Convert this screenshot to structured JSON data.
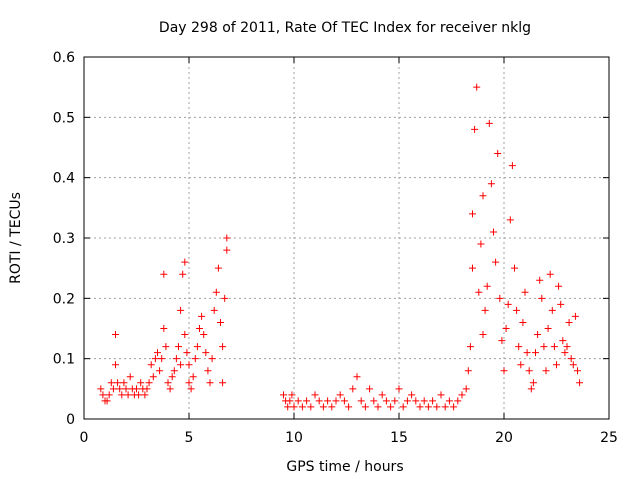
{
  "chart_data": {
    "type": "scatter",
    "title": "Day 298 of 2011, Rate Of TEC Index for receiver nklg",
    "xlabel": "GPS time / hours",
    "ylabel": "ROTI / TECUs",
    "xlim": [
      0,
      25
    ],
    "ylim": [
      0,
      0.6
    ],
    "xticks": [
      0,
      5,
      10,
      15,
      20,
      25
    ],
    "yticks": [
      0,
      0.1,
      0.2,
      0.3,
      0.4,
      0.5,
      0.6
    ],
    "xtick_labels": [
      "0",
      "5",
      "10",
      "15",
      "20",
      "25"
    ],
    "ytick_labels": [
      "0",
      "0.1",
      "0.2",
      "0.3",
      "0.4",
      "0.5",
      "0.6"
    ],
    "grid": true,
    "marker": "+",
    "color": "#ff0000",
    "series": [
      {
        "x": [
          0.8,
          0.9,
          1.0,
          1.1,
          1.2,
          1.3,
          1.4,
          1.5,
          1.5,
          1.6,
          1.7,
          1.8,
          1.9,
          2.0,
          2.1,
          2.2,
          2.3,
          2.4,
          2.5,
          2.6,
          2.7,
          2.8,
          2.9,
          3.0,
          3.1,
          3.2,
          3.3,
          3.4,
          3.5,
          3.6,
          3.7,
          3.8,
          3.8,
          3.9,
          4.0,
          4.1,
          4.2,
          4.3,
          4.4,
          4.5,
          4.6,
          4.6,
          4.7,
          4.8,
          4.8,
          4.9,
          5.0,
          5.0,
          5.1,
          5.2,
          5.3,
          5.4,
          5.5,
          5.6,
          5.7,
          5.8,
          5.9,
          6.0,
          6.1,
          6.2,
          6.3,
          6.4,
          6.5,
          6.6,
          6.6,
          6.7,
          6.8,
          6.8,
          9.5,
          9.6,
          9.7,
          9.8,
          9.9,
          10.0,
          10.2,
          10.4,
          10.6,
          10.8,
          11.0,
          11.2,
          11.4,
          11.6,
          11.8,
          12.0,
          12.2,
          12.4,
          12.6,
          12.8,
          13.0,
          13.2,
          13.4,
          13.6,
          13.8,
          14.0,
          14.2,
          14.4,
          14.6,
          14.8,
          15.0,
          15.2,
          15.4,
          15.6,
          15.8,
          16.0,
          16.2,
          16.4,
          16.6,
          16.8,
          17.0,
          17.2,
          17.4,
          17.6,
          17.8,
          18.0,
          18.2,
          18.3,
          18.4,
          18.5,
          18.5,
          18.6,
          18.7,
          18.8,
          18.9,
          19.0,
          19.0,
          19.1,
          19.2,
          19.3,
          19.4,
          19.5,
          19.6,
          19.7,
          19.8,
          19.9,
          20.0,
          20.1,
          20.2,
          20.3,
          20.4,
          20.5,
          20.6,
          20.7,
          20.8,
          20.9,
          21.0,
          21.1,
          21.2,
          21.3,
          21.4,
          21.5,
          21.6,
          21.7,
          21.8,
          21.9,
          22.0,
          22.1,
          22.2,
          22.3,
          22.4,
          22.5,
          22.6,
          22.7,
          22.8,
          22.9,
          23.0,
          23.1,
          23.2,
          23.3,
          23.4,
          23.5,
          23.6
        ],
        "y": [
          0.05,
          0.04,
          0.03,
          0.03,
          0.04,
          0.06,
          0.05,
          0.14,
          0.09,
          0.06,
          0.05,
          0.04,
          0.06,
          0.05,
          0.04,
          0.07,
          0.05,
          0.04,
          0.05,
          0.04,
          0.06,
          0.05,
          0.04,
          0.05,
          0.06,
          0.09,
          0.07,
          0.1,
          0.11,
          0.08,
          0.1,
          0.24,
          0.15,
          0.12,
          0.06,
          0.05,
          0.07,
          0.08,
          0.1,
          0.12,
          0.18,
          0.09,
          0.24,
          0.26,
          0.14,
          0.11,
          0.09,
          0.06,
          0.05,
          0.07,
          0.1,
          0.12,
          0.15,
          0.17,
          0.14,
          0.11,
          0.08,
          0.06,
          0.1,
          0.18,
          0.21,
          0.25,
          0.16,
          0.12,
          0.06,
          0.2,
          0.28,
          0.3,
          0.04,
          0.03,
          0.02,
          0.03,
          0.04,
          0.02,
          0.03,
          0.02,
          0.03,
          0.02,
          0.04,
          0.03,
          0.02,
          0.03,
          0.02,
          0.03,
          0.04,
          0.03,
          0.02,
          0.05,
          0.07,
          0.03,
          0.02,
          0.05,
          0.03,
          0.02,
          0.04,
          0.03,
          0.02,
          0.03,
          0.05,
          0.02,
          0.03,
          0.04,
          0.03,
          0.02,
          0.03,
          0.02,
          0.03,
          0.02,
          0.04,
          0.02,
          0.03,
          0.02,
          0.03,
          0.04,
          0.05,
          0.08,
          0.12,
          0.25,
          0.34,
          0.48,
          0.55,
          0.21,
          0.29,
          0.14,
          0.37,
          0.18,
          0.22,
          0.49,
          0.39,
          0.31,
          0.26,
          0.44,
          0.2,
          0.13,
          0.08,
          0.15,
          0.19,
          0.33,
          0.42,
          0.25,
          0.18,
          0.12,
          0.09,
          0.16,
          0.21,
          0.11,
          0.08,
          0.05,
          0.06,
          0.11,
          0.14,
          0.23,
          0.2,
          0.12,
          0.08,
          0.15,
          0.24,
          0.18,
          0.12,
          0.09,
          0.22,
          0.19,
          0.13,
          0.11,
          0.12,
          0.16,
          0.1,
          0.09,
          0.17,
          0.08,
          0.06
        ]
      }
    ]
  }
}
